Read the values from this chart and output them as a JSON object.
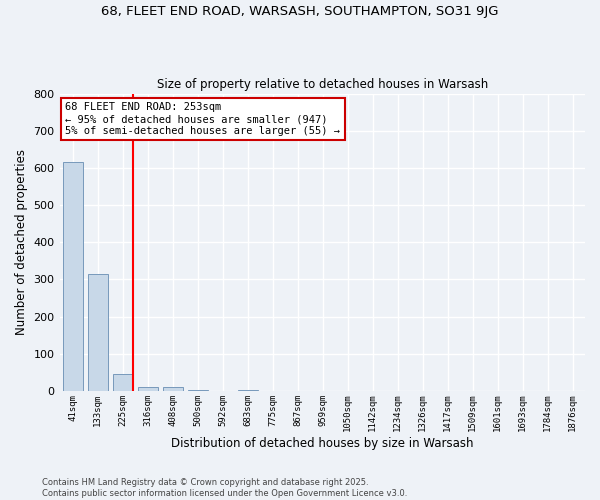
{
  "title1": "68, FLEET END ROAD, WARSASH, SOUTHAMPTON, SO31 9JG",
  "title2": "Size of property relative to detached houses in Warsash",
  "xlabel": "Distribution of detached houses by size in Warsash",
  "ylabel": "Number of detached properties",
  "categories": [
    "41sqm",
    "133sqm",
    "225sqm",
    "316sqm",
    "408sqm",
    "500sqm",
    "592sqm",
    "683sqm",
    "775sqm",
    "867sqm",
    "959sqm",
    "1050sqm",
    "1142sqm",
    "1234sqm",
    "1326sqm",
    "1417sqm",
    "1509sqm",
    "1601sqm",
    "1693sqm",
    "1784sqm",
    "1876sqm"
  ],
  "values": [
    615,
    315,
    45,
    10,
    10,
    3,
    0,
    3,
    0,
    0,
    0,
    0,
    0,
    0,
    0,
    0,
    0,
    0,
    0,
    0,
    0
  ],
  "bar_color": "#c8d8e8",
  "bar_edge_color": "#7799bb",
  "background_color": "#eef2f7",
  "grid_color": "#ffffff",
  "red_line_index": 2,
  "annotation_text": "68 FLEET END ROAD: 253sqm\n← 95% of detached houses are smaller (947)\n5% of semi-detached houses are larger (55) →",
  "annotation_box_facecolor": "#ffffff",
  "annotation_box_edgecolor": "#cc0000",
  "ylim": [
    0,
    800
  ],
  "yticks": [
    0,
    100,
    200,
    300,
    400,
    500,
    600,
    700,
    800
  ],
  "footer": "Contains HM Land Registry data © Crown copyright and database right 2025.\nContains public sector information licensed under the Open Government Licence v3.0."
}
